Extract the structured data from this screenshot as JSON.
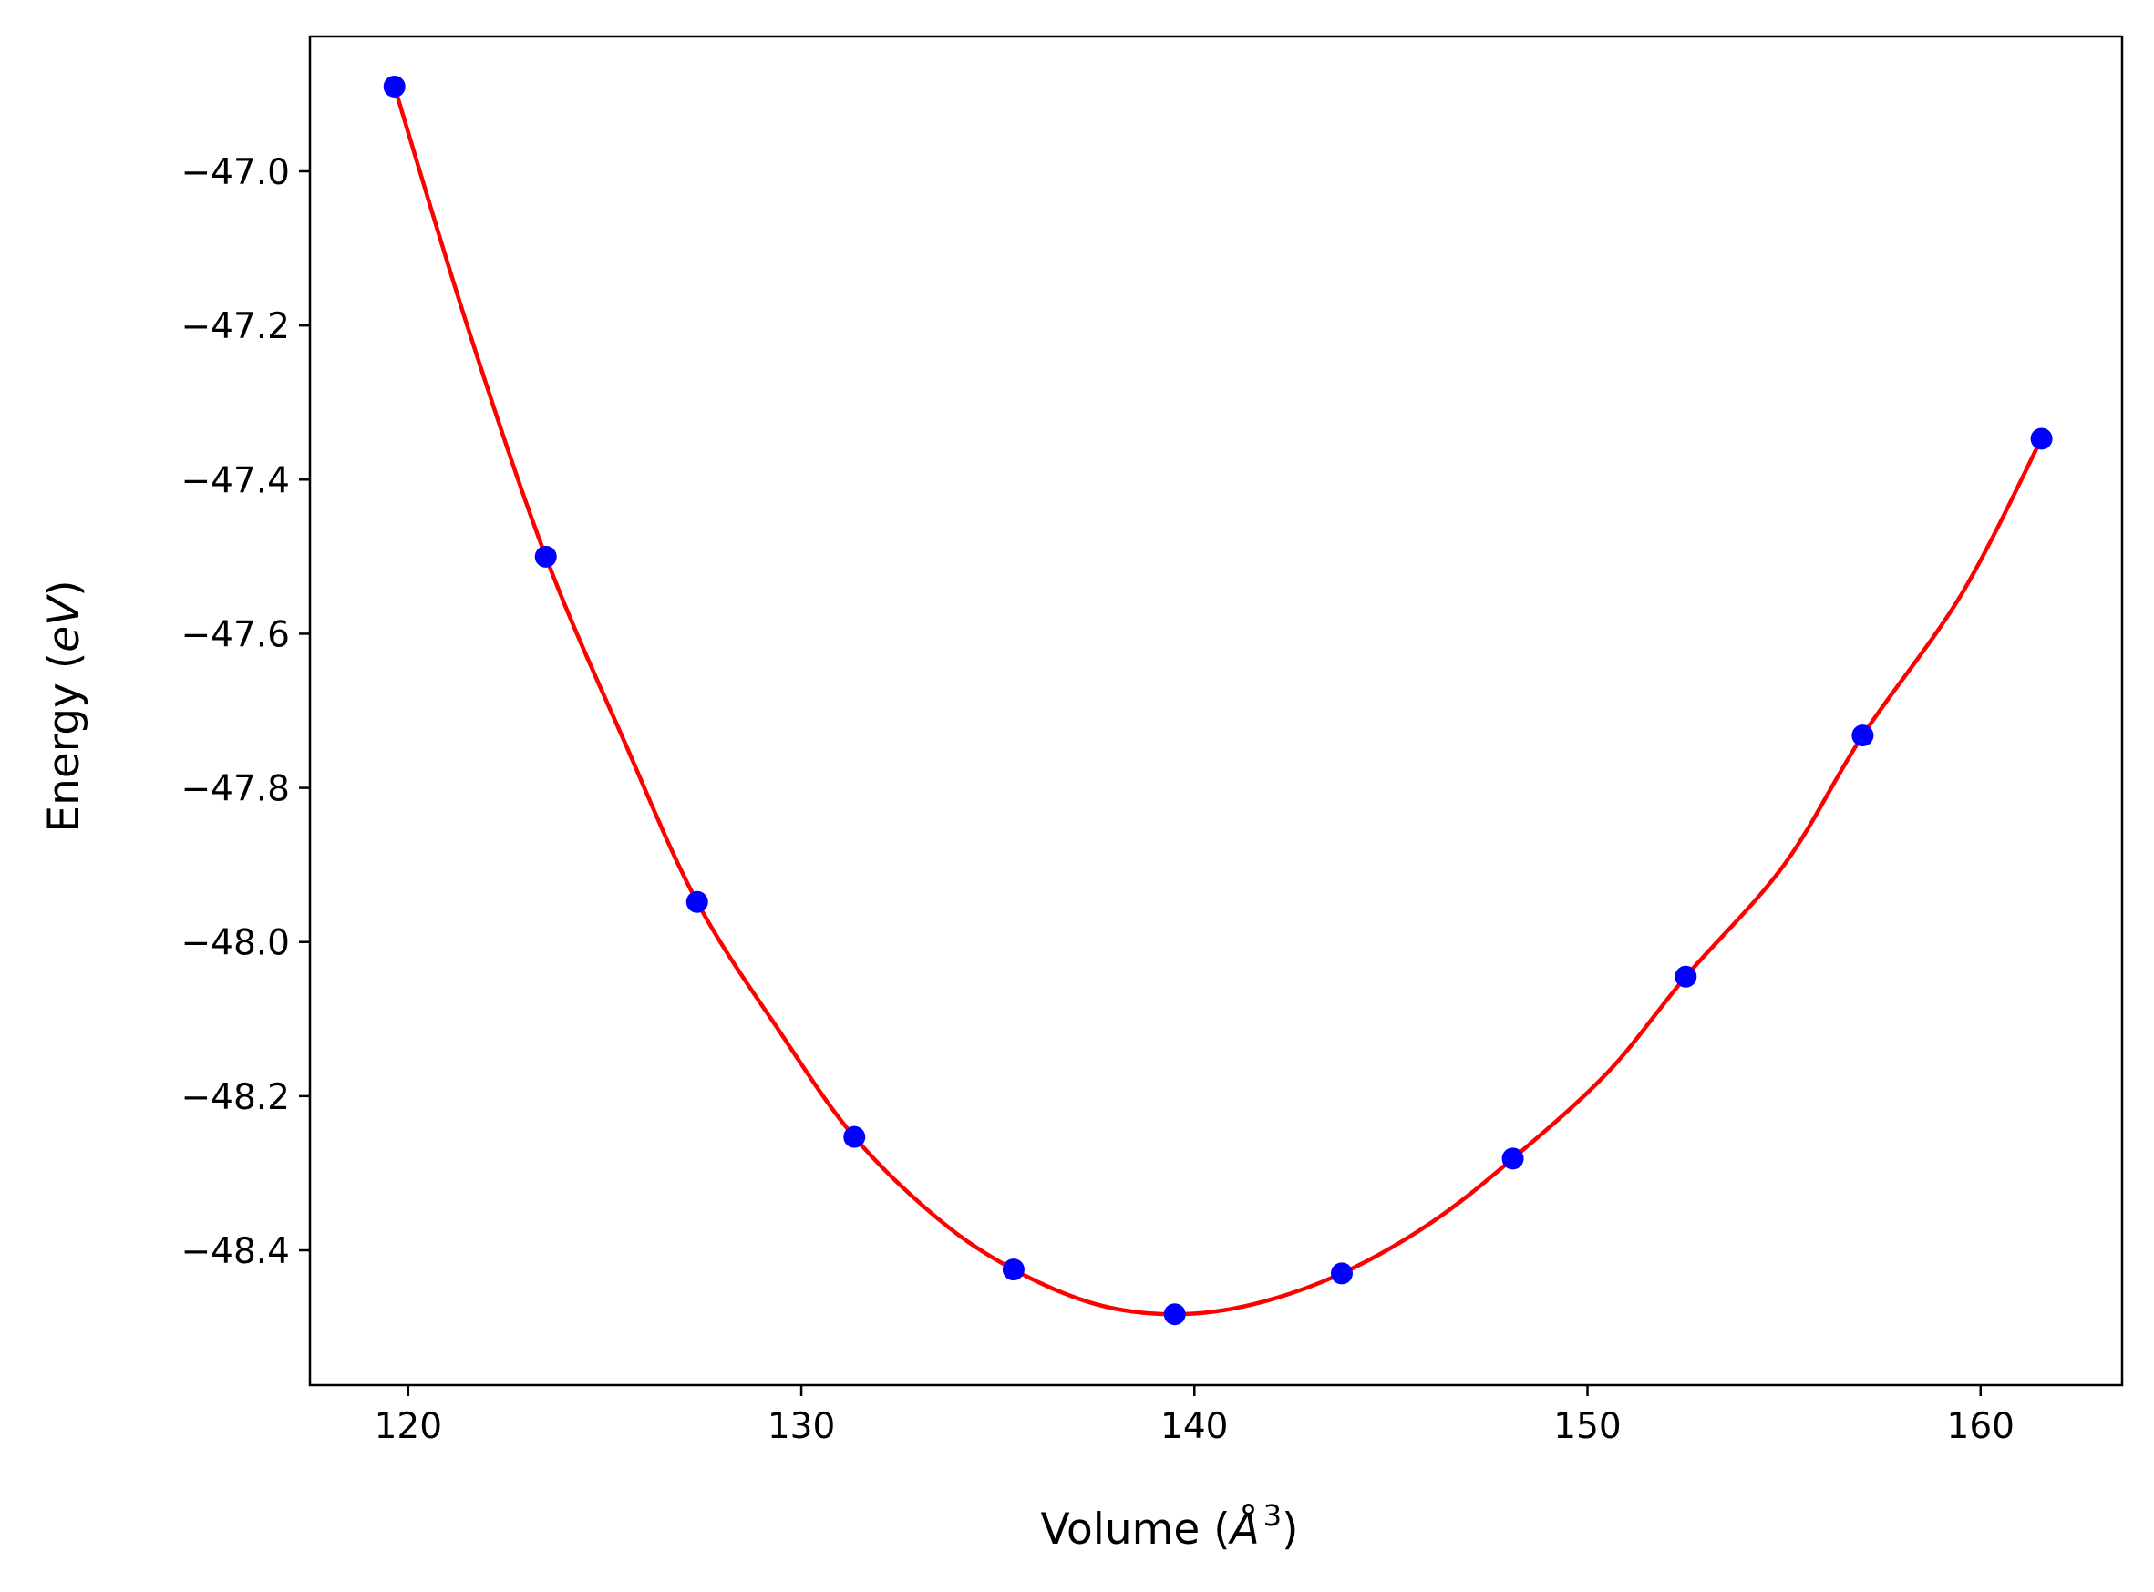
{
  "chart_data": {
    "type": "scatter",
    "title": "",
    "xlabel": "Volume (",
    "xlabel_symbol": "Å",
    "xlabel_sup": "3",
    "xlabel_close": ")",
    "ylabel": "Energy (",
    "ylabel_italic": "eV",
    "ylabel_close": ")",
    "xlim": [
      117.5,
      163.6
    ],
    "ylim": [
      -48.575,
      -46.825
    ],
    "x_ticks": [
      120,
      130,
      140,
      150,
      160
    ],
    "x_tick_labels": [
      "120",
      "130",
      "140",
      "150",
      "160"
    ],
    "y_ticks": [
      -47.0,
      -47.2,
      -47.4,
      -47.6,
      -47.8,
      -48.0,
      -48.2,
      -48.4
    ],
    "y_tick_labels": [
      "−47.0",
      "−47.2",
      "−47.4",
      "−47.6",
      "−47.8",
      "−48.0",
      "−48.2",
      "−48.4"
    ],
    "grid": false,
    "series": [
      {
        "kind": "points",
        "color": "#0000ff",
        "x": [
          119.65,
          123.5,
          127.35,
          131.35,
          135.4,
          139.5,
          143.75,
          148.1,
          152.5,
          157.0,
          161.55
        ],
        "y": [
          -46.89,
          -47.5,
          -47.948,
          -48.253,
          -48.425,
          -48.483,
          -48.43,
          -48.281,
          -48.045,
          -47.732,
          -47.347
        ]
      },
      {
        "kind": "fit-line",
        "color": "#ff0000",
        "x": [
          119.65,
          121.5,
          123.5,
          125.5,
          127.35,
          129.5,
          131.35,
          133.5,
          135.4,
          137.5,
          139.5,
          141.5,
          143.75,
          146.0,
          148.1,
          150.5,
          152.5,
          155.0,
          157.0,
          159.5,
          161.55
        ],
        "y": [
          -46.89,
          -47.2,
          -47.5,
          -47.74,
          -47.948,
          -48.12,
          -48.253,
          -48.36,
          -48.425,
          -48.47,
          -48.483,
          -48.47,
          -48.43,
          -48.365,
          -48.281,
          -48.17,
          -48.045,
          -47.9,
          -47.732,
          -47.55,
          -47.347
        ]
      }
    ]
  }
}
